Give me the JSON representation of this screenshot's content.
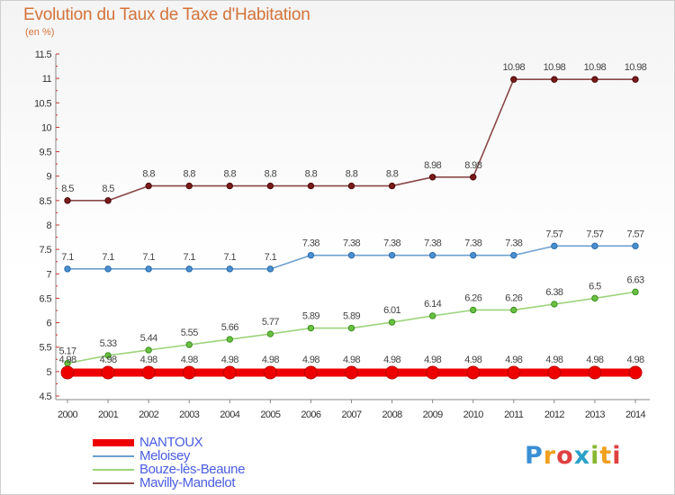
{
  "title": "Evolution du Taux de Taxe d'Habitation",
  "subtitle": "(en %)",
  "logo": {
    "text": "Proxiti",
    "letters": [
      {
        "ch": "P",
        "color": "#3a8fd4"
      },
      {
        "ch": "r",
        "color": "#f0a020"
      },
      {
        "ch": "o",
        "color": "#e04040"
      },
      {
        "ch": "x",
        "color": "#2aa0c8"
      },
      {
        "ch": "i",
        "color": "#88b830"
      },
      {
        "ch": "t",
        "color": "#f0a020"
      },
      {
        "ch": "i",
        "color": "#e04040"
      }
    ]
  },
  "chart_data": {
    "type": "line",
    "title": "Evolution du Taux de Taxe d'Habitation",
    "ylabel": "(en %)",
    "xlabel": "",
    "ylim": [
      4.5,
      11.5
    ],
    "yticks": [
      4.5,
      5,
      5.5,
      6,
      6.5,
      7,
      7.5,
      8,
      8.5,
      9,
      9.5,
      10,
      10.5,
      11,
      11.5
    ],
    "x": [
      2000,
      2001,
      2002,
      2003,
      2004,
      2005,
      2006,
      2007,
      2008,
      2009,
      2010,
      2011,
      2012,
      2013,
      2014
    ],
    "grid": false,
    "legend_position": "bottom-left",
    "series": [
      {
        "name": "NANTOUX",
        "color": "#ee0000",
        "values": [
          4.98,
          4.98,
          4.98,
          4.98,
          4.98,
          4.98,
          4.98,
          4.98,
          4.98,
          4.98,
          4.98,
          4.98,
          4.98,
          4.98,
          4.98
        ],
        "labels": [
          "4.98",
          "4.98",
          "4.98",
          "4.98",
          "4.98",
          "4.98",
          "4.98",
          "4.98",
          "4.98",
          "4.98",
          "4.98",
          "4.98",
          "4.98",
          "4.98",
          "4.98"
        ]
      },
      {
        "name": "Meloisey",
        "color": "#6ca0d0",
        "values": [
          7.1,
          7.1,
          7.1,
          7.1,
          7.1,
          7.1,
          7.38,
          7.38,
          7.38,
          7.38,
          7.38,
          7.38,
          7.57,
          7.57,
          7.57
        ],
        "labels": [
          "7.1",
          "7.1",
          "7.1",
          "7.1",
          "7.1",
          "7.1",
          "7.38",
          "7.38",
          "7.38",
          "7.38",
          "7.38",
          "7.38",
          "7.57",
          "7.57",
          "7.57"
        ]
      },
      {
        "name": "Bouze-lès-Beaune",
        "color": "#9cd47c",
        "values": [
          5.17,
          5.33,
          5.44,
          5.55,
          5.66,
          5.77,
          5.89,
          5.89,
          6.01,
          6.14,
          6.26,
          6.26,
          6.38,
          6.5,
          6.63
        ],
        "labels": [
          "5.17",
          "5.33",
          "5.44",
          "5.55",
          "5.66",
          "5.77",
          "5.89",
          "5.89",
          "6.01",
          "6.14",
          "6.26",
          "6.26",
          "6.38",
          "6.5",
          "6.63"
        ]
      },
      {
        "name": "Mavilly-Mandelot",
        "color": "#8a4848",
        "values": [
          8.5,
          8.5,
          8.8,
          8.8,
          8.8,
          8.8,
          8.8,
          8.8,
          8.8,
          8.98,
          8.98,
          10.98,
          10.98,
          10.98,
          10.98
        ],
        "labels": [
          "8.5",
          "8.5",
          "8.8",
          "8.8",
          "8.8",
          "8.8",
          "8.8",
          "8.8",
          "8.8",
          "8.98",
          "8.98",
          "10.98",
          "10.98",
          "10.98",
          "10.98"
        ]
      }
    ]
  }
}
